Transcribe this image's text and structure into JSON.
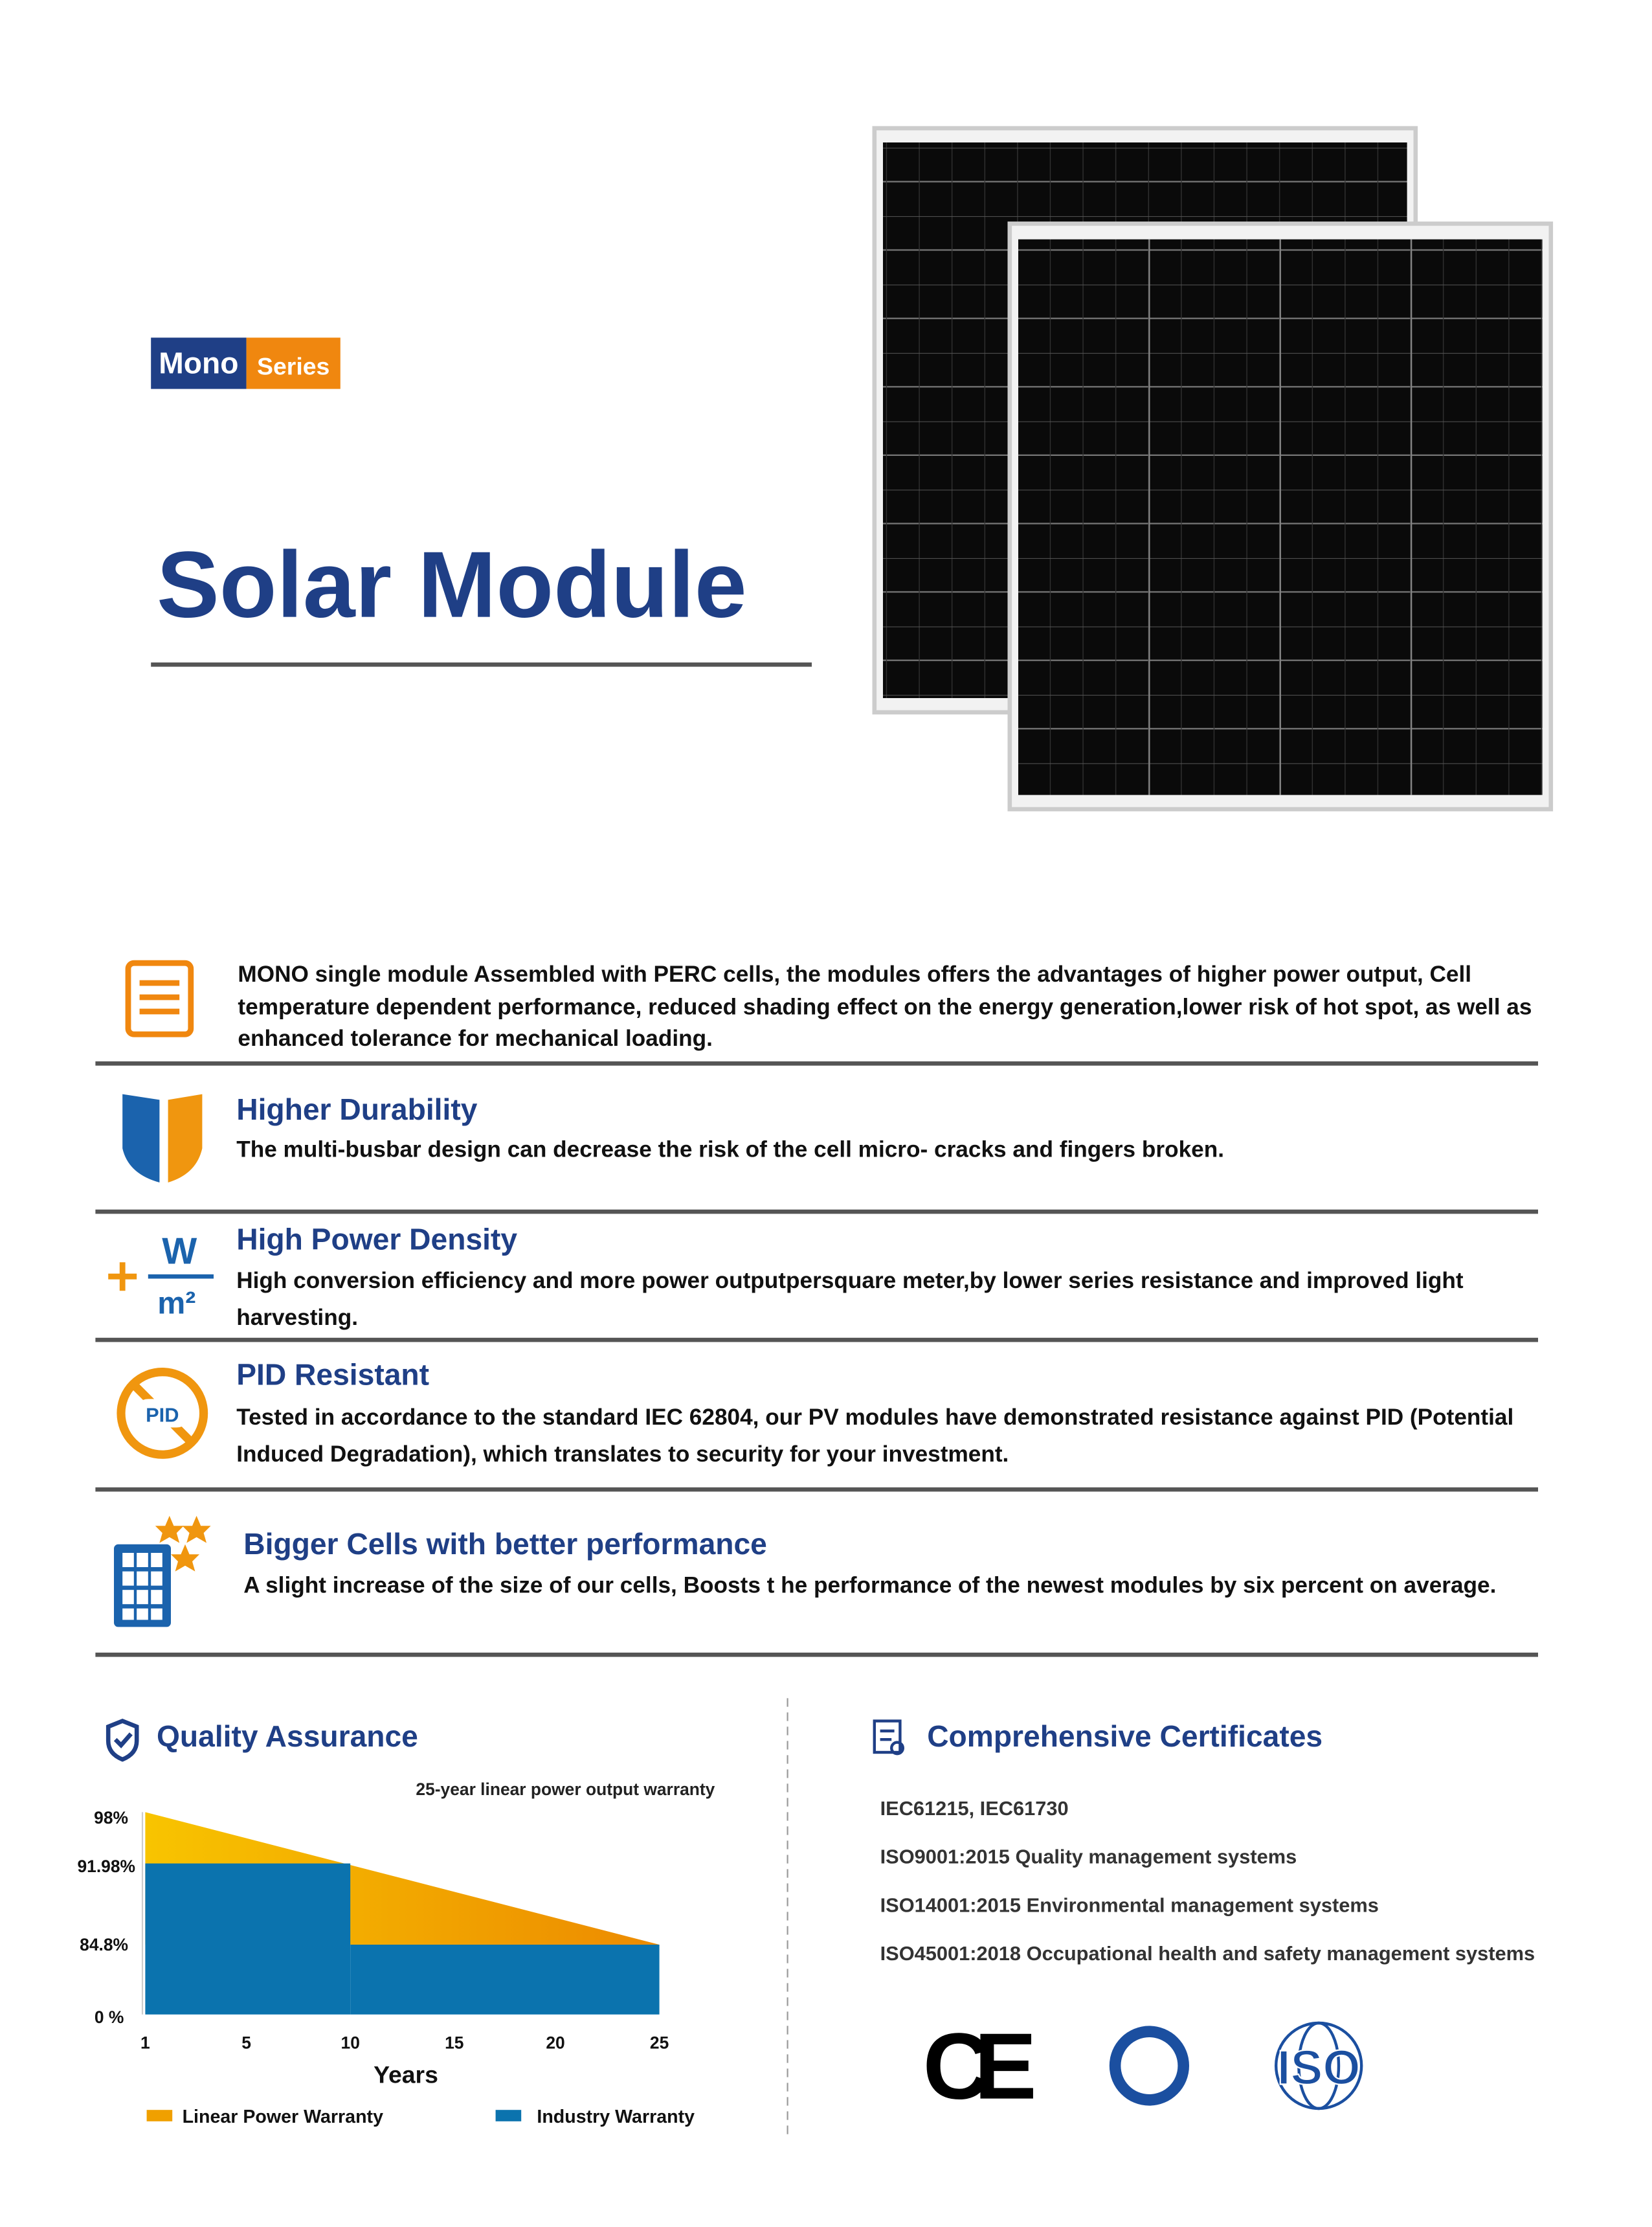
{
  "header": {
    "badge_main": "Mono",
    "badge_sub": "Series",
    "title": "Solar Module"
  },
  "intro": "MONO single module Assembled with PERC cells, the modules offers the advantages of higher power output, Cell temperature dependent performance, reduced shading effect on the energy generation,lower risk of hot spot, as well as enhanced tolerance for mechanical loading.",
  "features": [
    {
      "title": "Higher Durability",
      "text": "The multi-busbar design can decrease the risk of the cell micro- cracks and fingers broken."
    },
    {
      "title": "High Power Density",
      "text": "High conversion efficiency and more power outputpersquare meter,by lower series resistance and improved light harvesting."
    },
    {
      "title": "PID Resistant",
      "text": "Tested in accordance to the standard IEC 62804, our PV modules have demonstrated resistance against PID (Potential Induced Degradation), which translates to security for your investment."
    },
    {
      "title": "Bigger Cells with better performance",
      "text": "A slight increase of the size of our cells, Boosts t he performance of the newest modules by six percent on average."
    }
  ],
  "icons": {
    "density_unit_top": "W",
    "density_unit_bottom": "m²",
    "pid": "PID"
  },
  "quality": {
    "title": "Quality Assurance",
    "chart_title": "25-year linear power output warranty",
    "y_labels": [
      "98%",
      "91.98%",
      "84.8%",
      "0 %"
    ],
    "x_labels": [
      "1",
      "5",
      "10",
      "15",
      "20",
      "25"
    ],
    "x_title": "Years",
    "legend": [
      "Linear Power Warranty",
      "Industry Warranty"
    ]
  },
  "certificates": {
    "title": "Comprehensive Certificates",
    "items": [
      "IEC61215, IEC61730",
      "ISO9001:2015 Quality management systems",
      "ISO14001:2015 Environmental management systems",
      "ISO45001:2018 Occupational health and safety management systems"
    ],
    "logos": {
      "ce": "CE",
      "iso": "ISO"
    }
  }
}
